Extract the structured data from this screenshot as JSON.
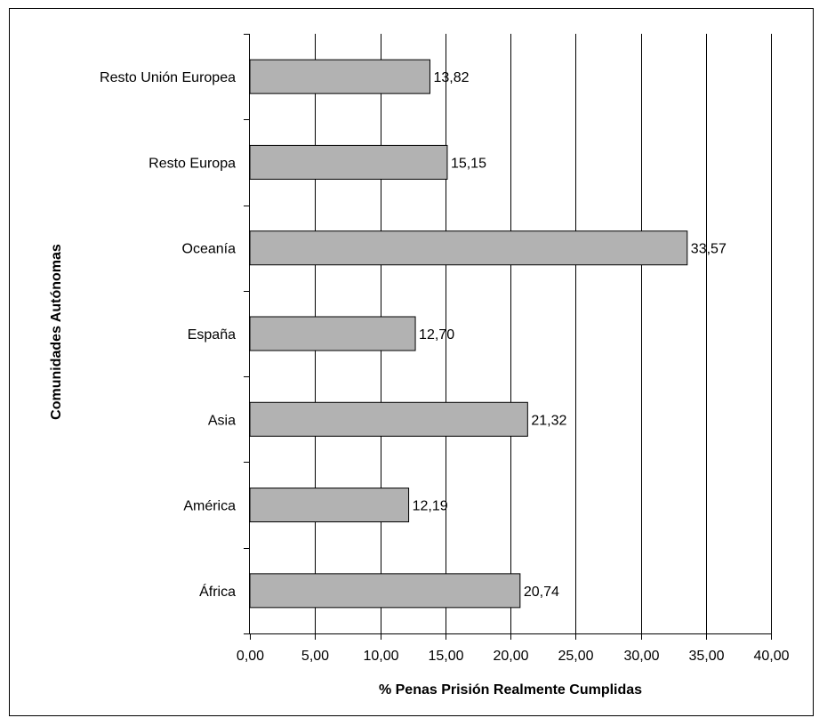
{
  "chart_data": {
    "type": "bar",
    "orientation": "horizontal",
    "title": "",
    "xlabel": "% Penas Prisión Realmente Cumplidas",
    "ylabel": "Comunidades Autónomas",
    "categories": [
      "Resto Unión Europea",
      "Resto Europa",
      "Oceanía",
      "España",
      "Asia",
      "América",
      "África"
    ],
    "values": [
      13.82,
      15.15,
      33.57,
      12.7,
      21.32,
      12.19,
      20.74
    ],
    "value_labels": [
      "13,82",
      "15,15",
      "33,57",
      "12,70",
      "21,32",
      "12,19",
      "20,74"
    ],
    "xlim": [
      0,
      40
    ],
    "x_ticks": [
      0,
      5,
      10,
      15,
      20,
      25,
      30,
      35,
      40
    ],
    "x_tick_labels": [
      "0,00",
      "5,00",
      "10,00",
      "15,00",
      "20,00",
      "25,00",
      "30,00",
      "35,00",
      "40,00"
    ],
    "grid": "vertical",
    "legend": "none",
    "bar_color": "#b2b2b2",
    "bar_edge_color": "#000000"
  }
}
